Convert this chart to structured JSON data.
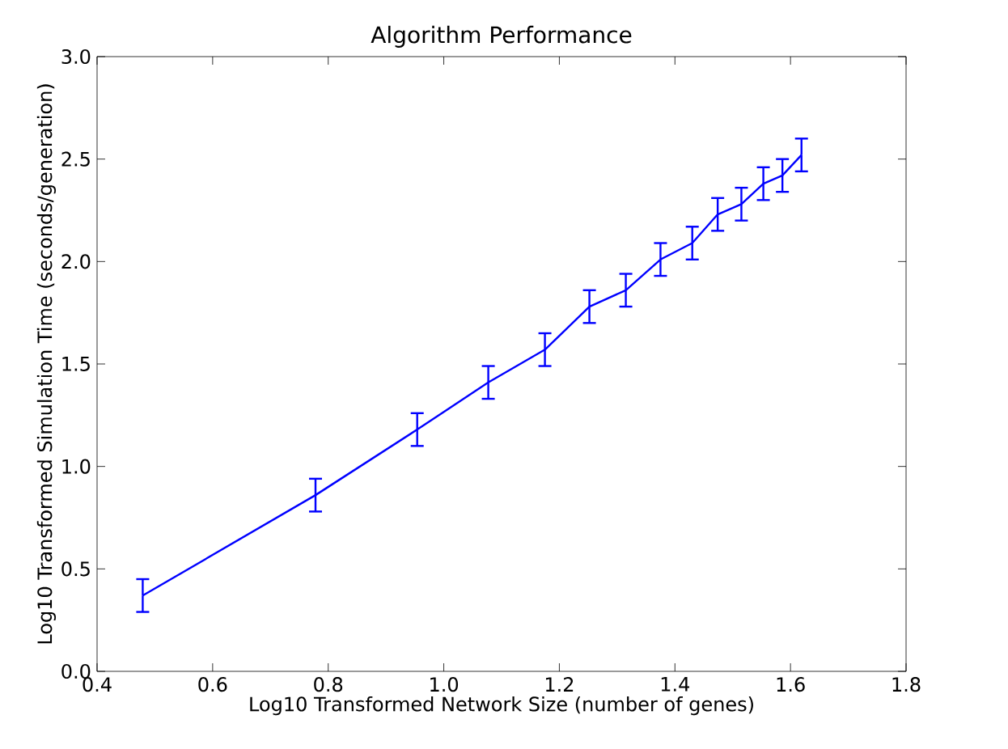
{
  "chart_data": {
    "type": "line",
    "title": "Algorithm Performance",
    "xlabel": "Log10 Transformed Network Size (number of genes)",
    "ylabel": "Log10 Transformed Simulation Time (seconds/generation)",
    "x": [
      0.479,
      0.778,
      0.954,
      1.077,
      1.175,
      1.252,
      1.315,
      1.375,
      1.43,
      1.474,
      1.515,
      1.553,
      1.586,
      1.619
    ],
    "series": [
      {
        "color": "#0000ff",
        "values": [
          0.37,
          0.86,
          1.18,
          1.41,
          1.57,
          1.78,
          1.86,
          2.01,
          2.09,
          2.23,
          2.28,
          2.38,
          2.42,
          2.52
        ],
        "errors": [
          0.08,
          0.08,
          0.08,
          0.08,
          0.08,
          0.08,
          0.08,
          0.08,
          0.08,
          0.08,
          0.08,
          0.08,
          0.08,
          0.08
        ]
      }
    ],
    "xlim": [
      0.4,
      1.8
    ],
    "ylim": [
      0,
      3.0
    ],
    "xticks": [
      {
        "value": 0.4,
        "label": "0.4"
      },
      {
        "value": 0.6,
        "label": "0.6"
      },
      {
        "value": 0.8,
        "label": "0.8"
      },
      {
        "value": 1.0,
        "label": "1.0"
      },
      {
        "value": 1.2,
        "label": "1.2"
      },
      {
        "value": 1.4,
        "label": "1.4"
      },
      {
        "value": 1.6,
        "label": "1.6"
      },
      {
        "value": 1.8,
        "label": "1.8"
      }
    ],
    "yticks": [
      {
        "value": 0,
        "label": "0.0"
      },
      {
        "value": 0.5,
        "label": "0.5"
      },
      {
        "value": 1.0,
        "label": "1.0"
      },
      {
        "value": 1.5,
        "label": "1.5"
      },
      {
        "value": 2.0,
        "label": "2.0"
      },
      {
        "value": 2.5,
        "label": "2.5"
      },
      {
        "value": 3.0,
        "label": "3.0"
      }
    ],
    "grid": false,
    "marker": "none",
    "line_style": "solid"
  }
}
